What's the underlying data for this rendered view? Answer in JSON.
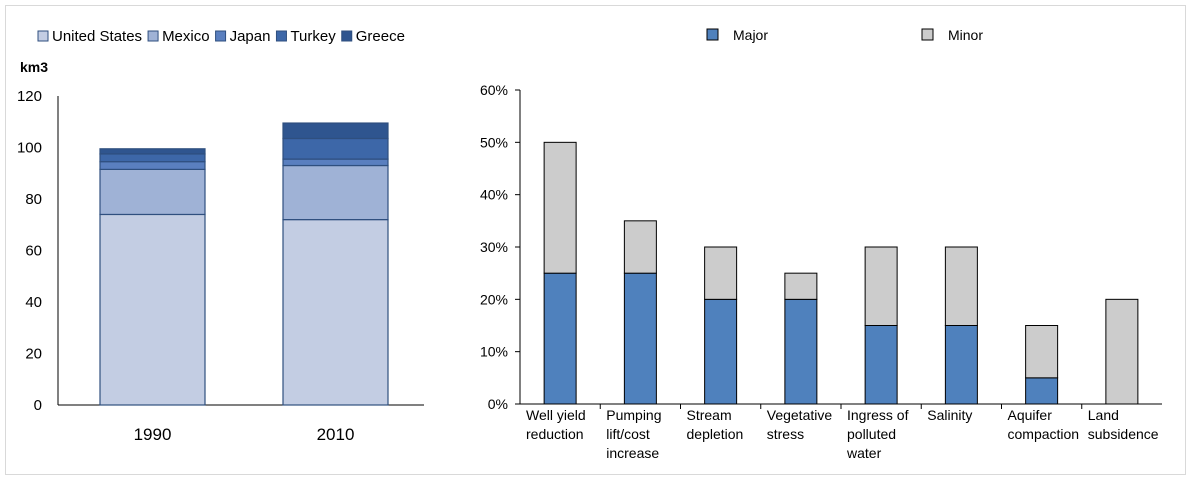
{
  "chart_data": [
    {
      "type": "bar",
      "stacked": true,
      "unit_label": "km3",
      "categories": [
        "1990",
        "2010"
      ],
      "series": [
        {
          "name": "United States",
          "values": [
            74,
            72
          ],
          "color": "#c3cde3"
        },
        {
          "name": "Mexico",
          "values": [
            17.5,
            21
          ],
          "color": "#9fb2d6"
        },
        {
          "name": "Japan",
          "values": [
            3,
            2.5
          ],
          "color": "#5a7fbf"
        },
        {
          "name": "Turkey",
          "values": [
            3,
            8
          ],
          "color": "#3d67a8"
        },
        {
          "name": "Greece",
          "values": [
            2,
            6
          ],
          "color": "#2f558f"
        }
      ],
      "ylim": [
        0,
        120
      ],
      "yticks": [
        0,
        20,
        40,
        60,
        80,
        100,
        120
      ],
      "ytick_labels": [
        "0",
        "20",
        "40",
        "60",
        "80",
        "100",
        "120"
      ],
      "grid": false,
      "legend": "top-left"
    },
    {
      "type": "bar",
      "stacked": true,
      "categories": [
        [
          "Well yield",
          "reduction"
        ],
        [
          "Pumping",
          "lift/cost",
          "increase"
        ],
        [
          "Stream",
          "depletion"
        ],
        [
          "Vegetative",
          "stress"
        ],
        [
          "Ingress of",
          "polluted",
          "water"
        ],
        [
          "Salinity"
        ],
        [
          "Aquifer",
          "compaction"
        ],
        [
          "Land",
          "subsidence"
        ]
      ],
      "series": [
        {
          "name": "Major",
          "values": [
            25,
            25,
            20,
            20,
            15,
            15,
            5,
            0
          ],
          "color": "#4f81bd"
        },
        {
          "name": "Minor",
          "values": [
            25,
            10,
            10,
            5,
            15,
            15,
            10,
            20
          ],
          "color": "#cccccc"
        }
      ],
      "ylim": [
        0,
        60
      ],
      "yticks": [
        0,
        10,
        20,
        30,
        40,
        50,
        60
      ],
      "ytick_labels": [
        "0%",
        "10%",
        "20%",
        "30%",
        "40%",
        "50%",
        "60%"
      ],
      "grid": false,
      "legend": "top"
    }
  ]
}
